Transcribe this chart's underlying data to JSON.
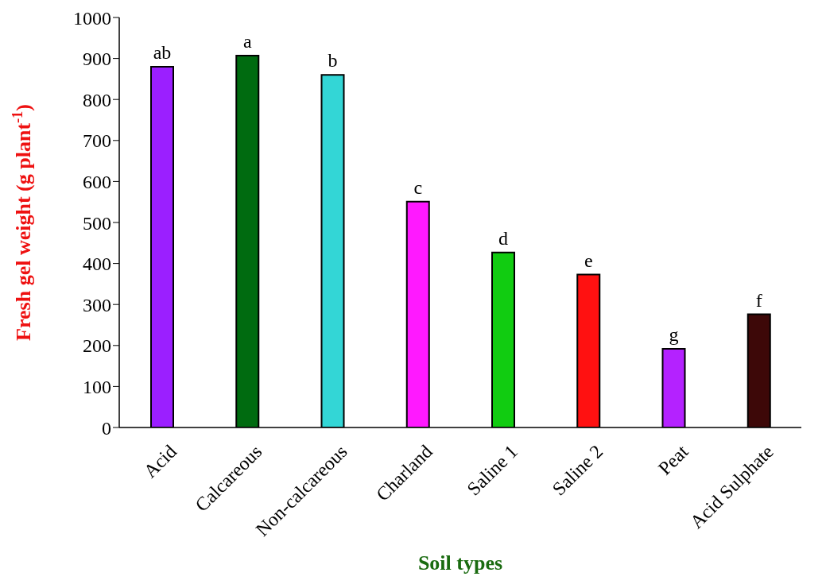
{
  "chart_data": {
    "type": "bar",
    "xlabel": "Soil types",
    "ylabel": "Fresh gel weight (g plant$^{-1}$)",
    "categories": [
      "Acid",
      "Calcareous",
      "Non-calcareous",
      "Charland",
      "Saline 1",
      "Saline 2",
      "Peat",
      "Acid Sulphate"
    ],
    "values": [
      880,
      907,
      860,
      551,
      427,
      373,
      192,
      276
    ],
    "colors": [
      "#9b1fff",
      "#006b10",
      "#33d6d6",
      "#ff19ff",
      "#11cc11",
      "#ff1111",
      "#b422ff",
      "#3d0808"
    ],
    "ylim": [
      0,
      1000
    ],
    "yticks": [
      0,
      100,
      200,
      300,
      400,
      500,
      600,
      700,
      800,
      900,
      1000
    ],
    "grid": false,
    "legend": false,
    "annotations": [
      {
        "text": "ab",
        "x": "Acid",
        "y": 880
      },
      {
        "text": "a",
        "x": "Calcareous",
        "y": 907
      },
      {
        "text": "b",
        "x": "Non-calcareous",
        "y": 860
      },
      {
        "text": "c",
        "x": "Charland",
        "y": 551
      },
      {
        "text": "d",
        "x": "Saline 1",
        "y": 427
      },
      {
        "text": "e",
        "x": "Saline 2",
        "y": 373
      },
      {
        "text": "g",
        "x": "Peat",
        "y": 192
      },
      {
        "text": "f",
        "x": "Acid Sulphate",
        "y": 276
      }
    ]
  }
}
